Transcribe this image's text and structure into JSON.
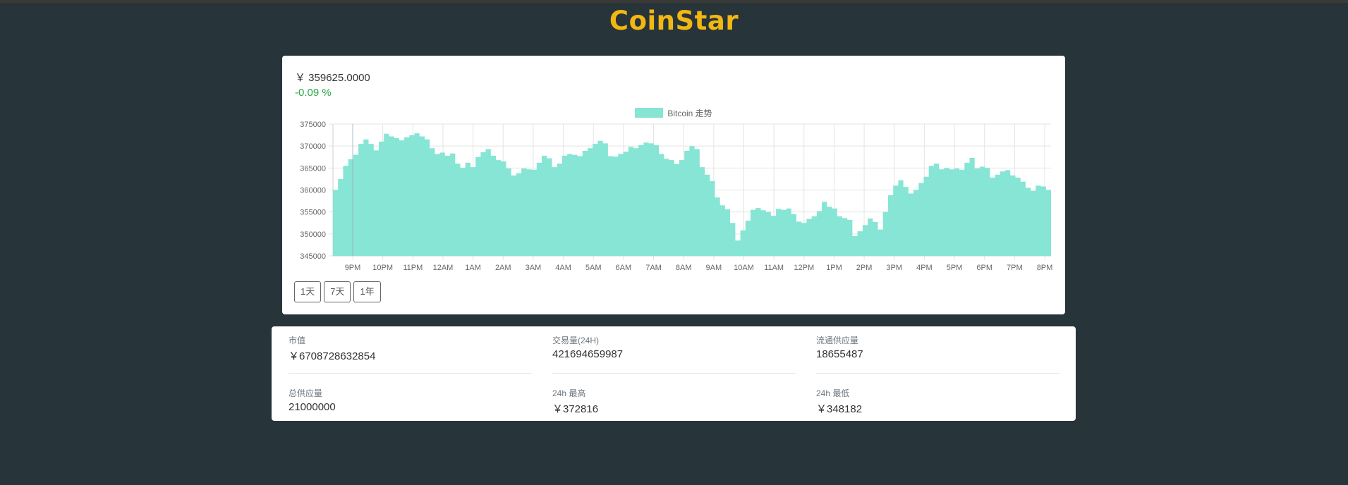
{
  "app": {
    "title": "CoinStar"
  },
  "ticker": {
    "price": "￥ 359625.0000",
    "change": "-0.09 %"
  },
  "chart_data": {
    "type": "area",
    "series": [
      {
        "name": "Bitcoin 走势",
        "color": "#86e5d4",
        "values": [
          360000,
          362500,
          365500,
          367000,
          368000,
          370500,
          371500,
          370500,
          369000,
          371000,
          372800,
          372200,
          371800,
          371300,
          372000,
          372500,
          372900,
          372200,
          371500,
          369500,
          368200,
          368500,
          367800,
          368300,
          366000,
          365000,
          366200,
          365200,
          367500,
          368600,
          369300,
          367800,
          366800,
          366500,
          364900,
          363300,
          363800,
          364900,
          364700,
          364600,
          366200,
          367800,
          367200,
          365200,
          366000,
          367800,
          368200,
          368000,
          367700,
          368900,
          369500,
          370500,
          371200,
          370600,
          367700,
          367600,
          368200,
          368700,
          369800,
          369500,
          370200,
          370800,
          370600,
          370200,
          368200,
          367100,
          366800,
          365900,
          366800,
          368900,
          370000,
          369300,
          365200,
          363500,
          362000,
          358300,
          356500,
          355600,
          352500,
          348500,
          350800,
          353000,
          355500,
          355900,
          355400,
          355000,
          354100,
          355700,
          355500,
          355800,
          354500,
          352800,
          352500,
          353400,
          354000,
          355200,
          357300,
          356200,
          355800,
          354000,
          353600,
          353200,
          349500,
          350600,
          352000,
          353500,
          352700,
          351000,
          355000,
          358800,
          361000,
          362200,
          360700,
          359200,
          360000,
          361600,
          363000,
          365500,
          366000,
          364700,
          365000,
          364700,
          364900,
          364600,
          366200,
          367300,
          364900,
          365300,
          365000,
          362800,
          363500,
          364200,
          364500,
          363300,
          362800,
          361900,
          360500,
          359800,
          361000,
          360800,
          360000
        ]
      }
    ],
    "x_tick_labels": [
      "9PM",
      "10PM",
      "11PM",
      "12AM",
      "1AM",
      "2AM",
      "3AM",
      "4AM",
      "5AM",
      "6AM",
      "7AM",
      "8AM",
      "9AM",
      "10AM",
      "11AM",
      "12PM",
      "1PM",
      "2PM",
      "3PM",
      "4PM",
      "5PM",
      "6PM",
      "7PM",
      "8PM"
    ],
    "y_tick_labels": [
      "375000",
      "370000",
      "365000",
      "360000",
      "355000",
      "350000",
      "345000"
    ],
    "ylim": [
      345000,
      375000
    ],
    "grid": true,
    "legend": "top-center"
  },
  "range_buttons": [
    "1天",
    "7天",
    "1年"
  ],
  "stats": [
    {
      "label": "市值",
      "value": "￥6708728632854"
    },
    {
      "label": "交易量(24H)",
      "value": "421694659987"
    },
    {
      "label": "流通供应量",
      "value": "18655487"
    },
    {
      "label": "总供应量",
      "value": "21000000"
    },
    {
      "label": "24h 最高",
      "value": "￥372816"
    },
    {
      "label": "24h 最低",
      "value": "￥348182"
    }
  ]
}
